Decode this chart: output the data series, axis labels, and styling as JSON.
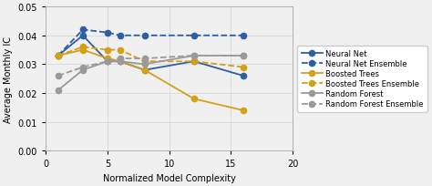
{
  "x": [
    1,
    3,
    5,
    6,
    8,
    12,
    16
  ],
  "neural_net": [
    0.033,
    0.04,
    0.031,
    0.031,
    0.028,
    0.031,
    0.026
  ],
  "neural_net_ensemble": [
    0.033,
    0.042,
    0.041,
    0.04,
    0.04,
    0.04,
    0.04
  ],
  "boosted_trees": [
    0.033,
    0.035,
    0.032,
    0.031,
    0.028,
    0.018,
    0.014
  ],
  "boosted_trees_ensemble": [
    0.033,
    0.036,
    0.035,
    0.035,
    0.031,
    0.031,
    0.029
  ],
  "random_forest": [
    0.021,
    0.028,
    0.031,
    0.031,
    0.03,
    0.033,
    0.033
  ],
  "random_forest_ensemble": [
    0.026,
    0.029,
    0.031,
    0.032,
    0.032,
    0.033,
    0.033
  ],
  "xlim": [
    0,
    20
  ],
  "ylim": [
    0.0,
    0.05
  ],
  "xticks": [
    0,
    5,
    10,
    15,
    20
  ],
  "yticks": [
    0.0,
    0.01,
    0.02,
    0.03,
    0.04,
    0.05
  ],
  "xlabel": "Normalized Model Complexity",
  "ylabel": "Average Monthly IC",
  "neural_net_color": "#2E5FA3",
  "boosted_trees_color": "#D4A017",
  "random_forest_color": "#999999",
  "legend_labels": [
    "Neural Net",
    "Neural Net Ensemble",
    "Boosted Trees",
    "Boosted Trees Ensemble",
    "Random Forest",
    "Random Forest Ensemble"
  ],
  "fig_bg": "#f0f0f0",
  "plot_bg": "#f0f0f0"
}
